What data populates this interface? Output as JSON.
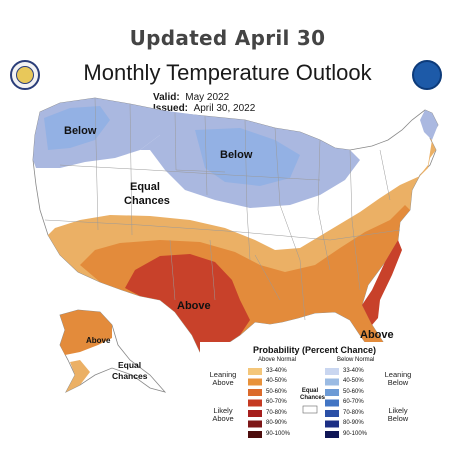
{
  "banner": "Updated April 30",
  "title": "Monthly Temperature Outlook",
  "valid_label": "Valid:",
  "valid_value": "May 2022",
  "issued_label": "Issued:",
  "issued_value": "April 30, 2022",
  "map_labels": {
    "below_west": "Below",
    "below_central": "Below",
    "equal_main_1": "Equal",
    "equal_main_2": "Chances",
    "above_main": "Above",
    "above_southeast": "Above",
    "above_alaska": "Above",
    "equal_alaska_1": "Equal",
    "equal_alaska_2": "Chances"
  },
  "legend": {
    "title": "Probability (Percent Chance)",
    "above_header": "Above Normal",
    "below_header": "Below Normal",
    "above_bins": [
      "33-40%",
      "40-50%",
      "50-60%",
      "60-70%",
      "70-80%",
      "80-90%",
      "90-100%"
    ],
    "below_bins": [
      "33-40%",
      "40-50%",
      "50-60%",
      "60-70%",
      "70-80%",
      "80-90%",
      "90-100%"
    ],
    "above_colors": [
      "#f4c67a",
      "#e8923b",
      "#db6a2b",
      "#c53a22",
      "#a61f1d",
      "#7d1617",
      "#4d0d0d"
    ],
    "below_colors": [
      "#c9d6f0",
      "#9bbbe3",
      "#6c9ad5",
      "#4275c4",
      "#2a4fa6",
      "#1c2f85",
      "#0f1656"
    ],
    "equal_label_1": "Equal",
    "equal_label_2": "Chances",
    "leaning_above_1": "Leaning",
    "leaning_above_2": "Above",
    "likely_above_1": "Likely",
    "likely_above_2": "Above",
    "leaning_below_1": "Leaning",
    "leaning_below_2": "Below",
    "likely_below_1": "Likely",
    "likely_below_2": "Below"
  },
  "colors": {
    "below": "#aab8e0",
    "below_strong": "#93b1e4",
    "above_33": "#ebb065",
    "above_40": "#e38b3b",
    "above_50": "#c8412a",
    "equal": "#ffffff"
  }
}
